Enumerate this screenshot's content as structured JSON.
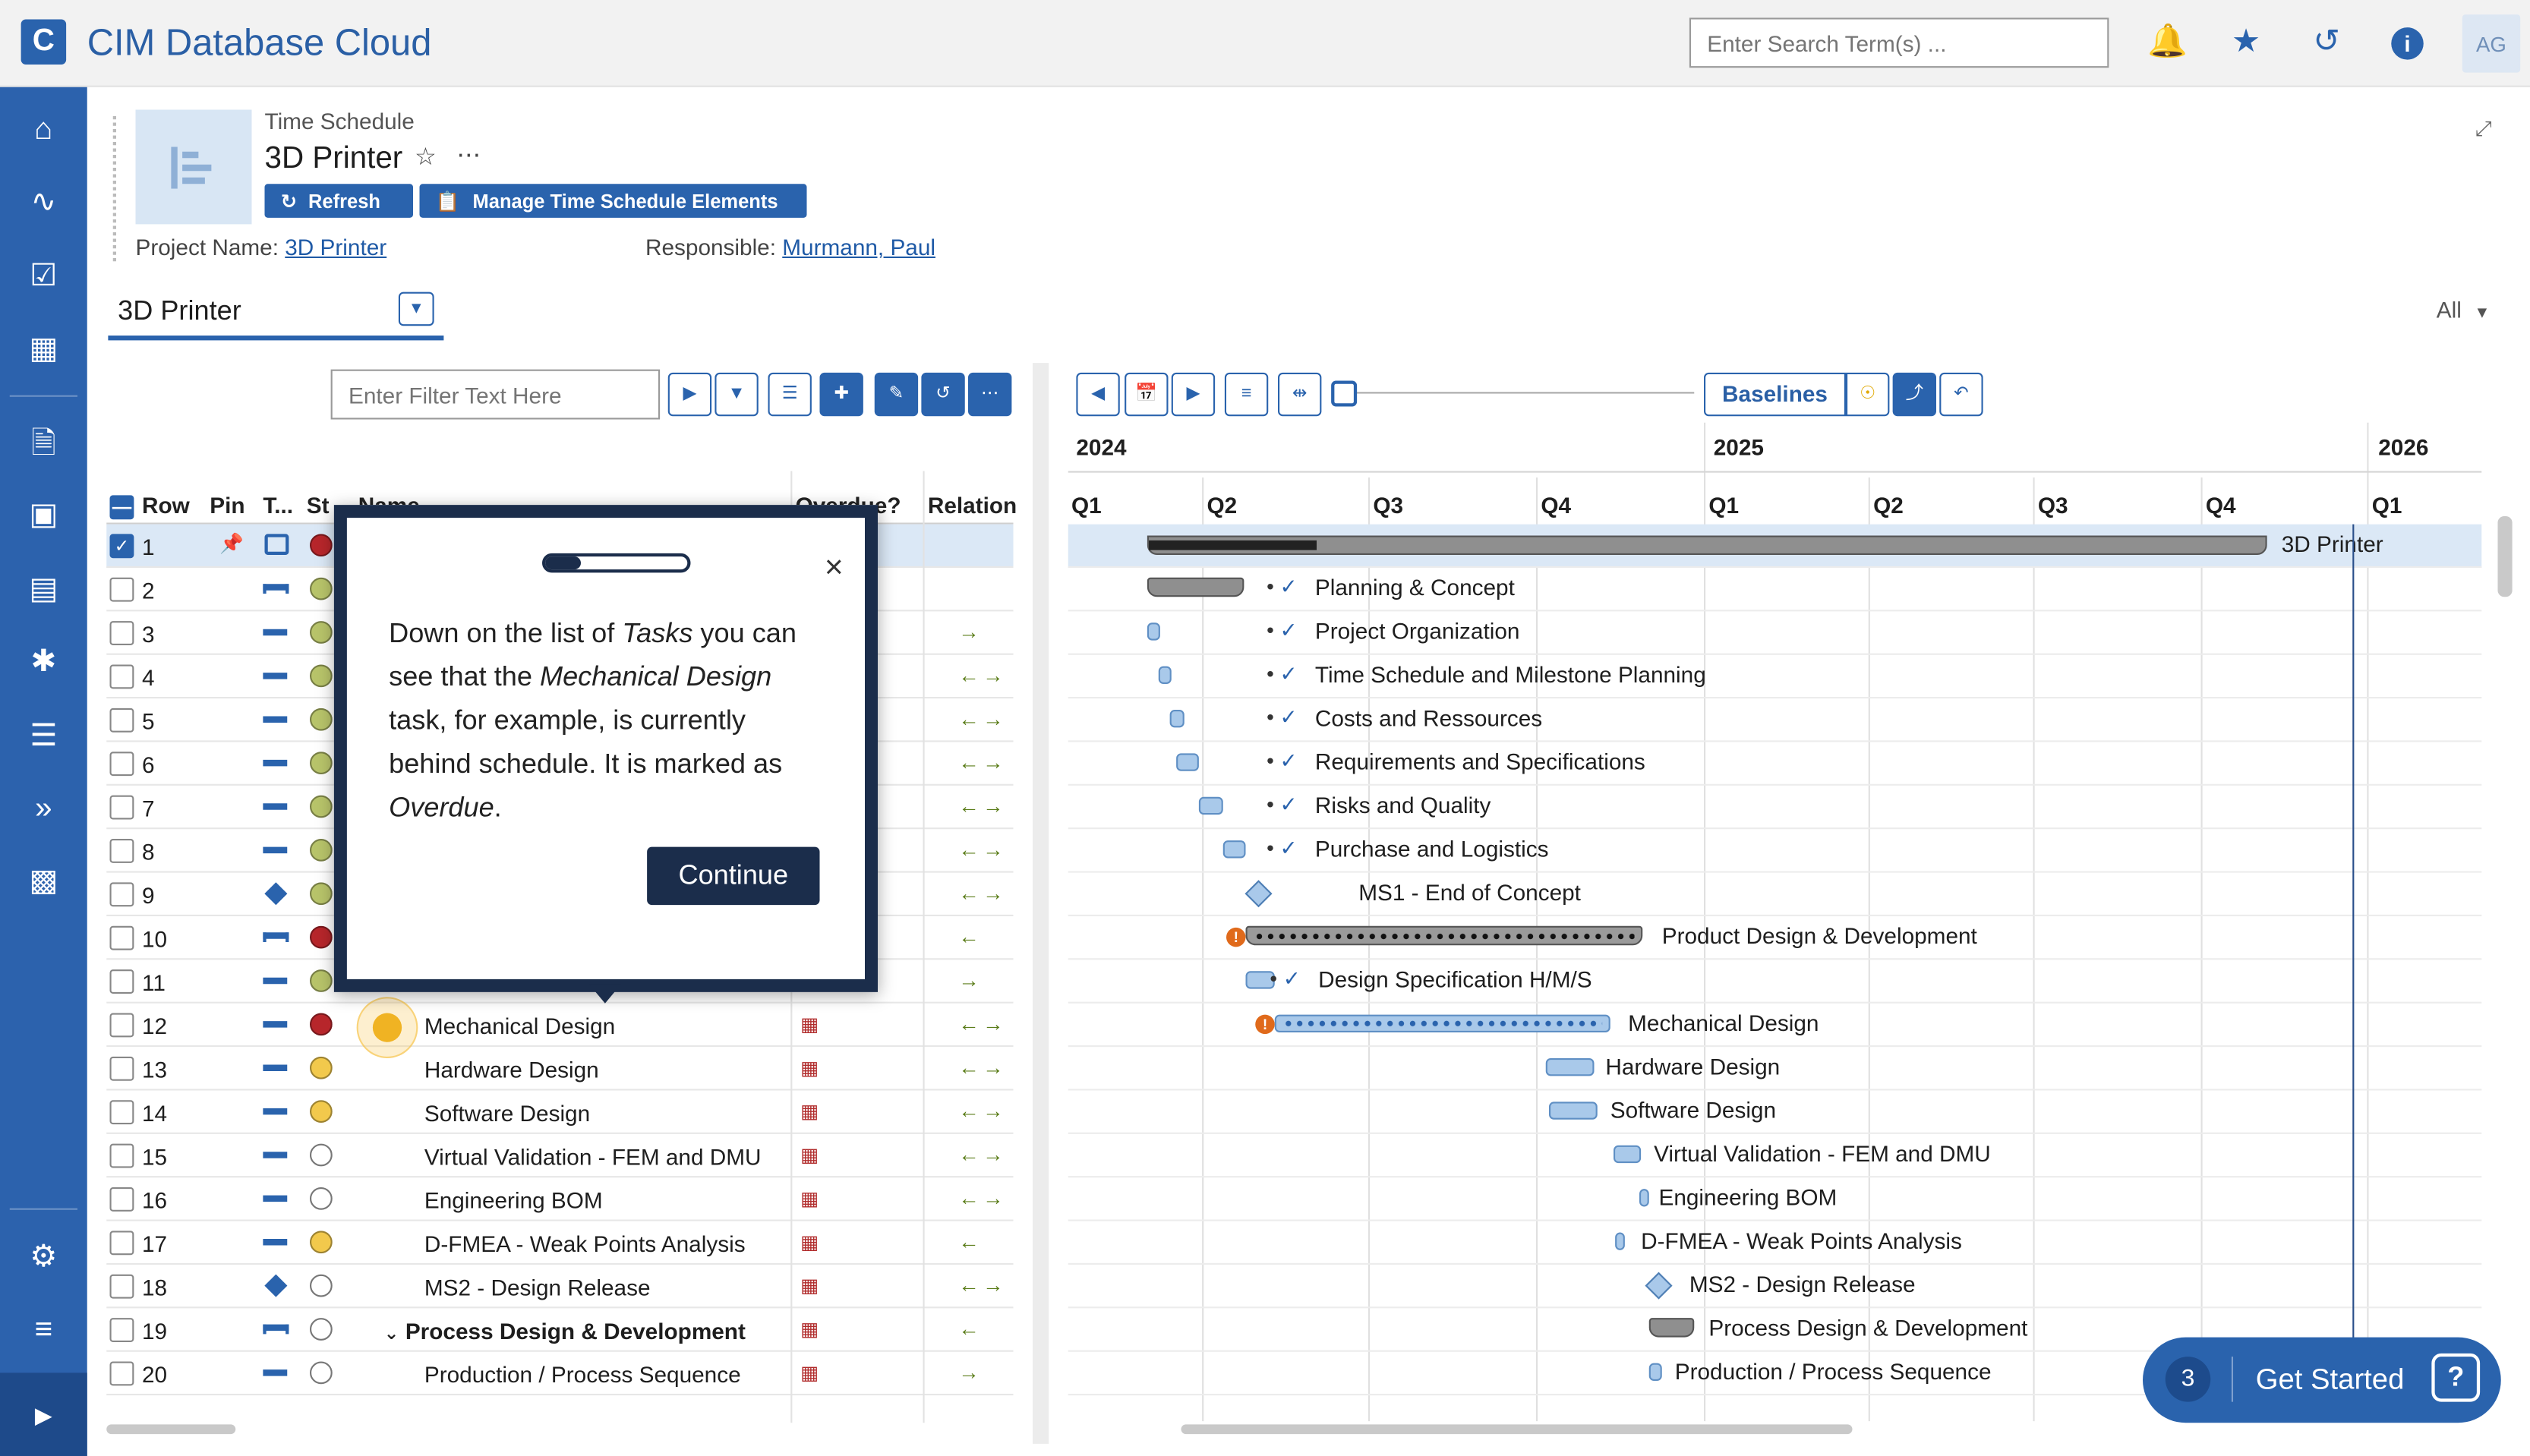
{
  "app": {
    "title": "CIM Database Cloud",
    "logo_letter": "C"
  },
  "header": {
    "search_placeholder": "Enter Search Term(s) ...",
    "avatar": "AG",
    "icons": [
      "bell-icon",
      "star-icon",
      "history-icon",
      "info-icon"
    ]
  },
  "sidebar": {
    "items": [
      "home-icon",
      "activity-icon",
      "tasks-icon",
      "table-icon",
      "document-icon",
      "book-icon",
      "board-icon",
      "puzzle-icon",
      "list-icon",
      "forward-icon",
      "building-icon"
    ],
    "bottom": [
      "settings-icon",
      "sliders-icon",
      "expand-icon"
    ]
  },
  "object": {
    "type": "Time Schedule",
    "name": "3D Printer",
    "refresh_label": "Refresh",
    "manage_label": "Manage Time Schedule Elements",
    "project_label": "Project Name:",
    "project_value": "3D Printer",
    "responsible_label": "Responsible:",
    "responsible_value": "Murmann, Paul"
  },
  "tab": {
    "label": "3D Printer",
    "filter_all": "All"
  },
  "grid": {
    "filter_placeholder": "Enter Filter Text Here",
    "headers": {
      "row": "Row",
      "pin": "Pin",
      "type": "T...",
      "status": "St",
      "name": "Name",
      "overdue": "Overdue?",
      "relation": "Relation"
    },
    "rows": [
      {
        "n": "1",
        "name": "",
        "status": "red",
        "sel": true
      },
      {
        "n": "2",
        "name": "",
        "status": "green"
      },
      {
        "n": "3",
        "name": "",
        "status": "green"
      },
      {
        "n": "4",
        "name": "",
        "status": "green"
      },
      {
        "n": "5",
        "name": "",
        "status": "green"
      },
      {
        "n": "6",
        "name": "",
        "status": "green"
      },
      {
        "n": "7",
        "name": "",
        "status": "green"
      },
      {
        "n": "8",
        "name": "",
        "status": "green"
      },
      {
        "n": "9",
        "name": "",
        "status": "green"
      },
      {
        "n": "10",
        "name": "",
        "status": "red"
      },
      {
        "n": "11",
        "name": "",
        "status": "green"
      },
      {
        "n": "12",
        "name": "Mechanical Design",
        "status": "red",
        "overdue": true
      },
      {
        "n": "13",
        "name": "Hardware Design",
        "status": "yellow",
        "overdue": true
      },
      {
        "n": "14",
        "name": "Software Design",
        "status": "yellow",
        "overdue": true
      },
      {
        "n": "15",
        "name": "Virtual Validation - FEM and DMU",
        "status": "white",
        "overdue": true
      },
      {
        "n": "16",
        "name": "Engineering BOM",
        "status": "white",
        "overdue": true
      },
      {
        "n": "17",
        "name": "D-FMEA - Weak Points Analysis",
        "status": "yellow",
        "overdue": true
      },
      {
        "n": "18",
        "name": "MS2 - Design Release",
        "status": "white",
        "overdue": true
      },
      {
        "n": "19",
        "name": "Process Design & Development",
        "status": "white",
        "overdue": true,
        "bold": true
      },
      {
        "n": "20",
        "name": "Production / Process Sequence",
        "status": "white",
        "overdue": true
      }
    ]
  },
  "gantt": {
    "baselines_label": "Baselines",
    "years": [
      "2024",
      "2025",
      "2026"
    ],
    "quarters": [
      "Q1",
      "Q2",
      "Q3",
      "Q4",
      "Q1",
      "Q2",
      "Q3",
      "Q4",
      "Q1"
    ],
    "rows": [
      "3D Printer",
      "Planning & Concept",
      "Project Organization",
      "Time Schedule and Milestone Planning",
      "Costs and Ressources",
      "Requirements and Specifications",
      "Risks and Quality",
      "Purchase and Logistics",
      "MS1 - End of Concept",
      "Product Design & Development",
      "Design Specification H/M/S",
      "Mechanical Design",
      "Hardware Design",
      "Software Design",
      "Virtual Validation - FEM and DMU",
      "Engineering BOM",
      "D-FMEA - Weak Points Analysis",
      "MS2 - Design Release",
      "Process Design & Development",
      "Production / Process Sequence"
    ]
  },
  "tour": {
    "progress": 0.25,
    "text_html": "Down on the list of <i>Tasks</i> you can see that the <i>Mechanical Design</i> task, for example, is currently behind schedule. It is marked as <i>Overdue</i>.",
    "continue_label": "Continue",
    "close": "×"
  },
  "get_started": {
    "count": "3",
    "label": "Get Started"
  }
}
